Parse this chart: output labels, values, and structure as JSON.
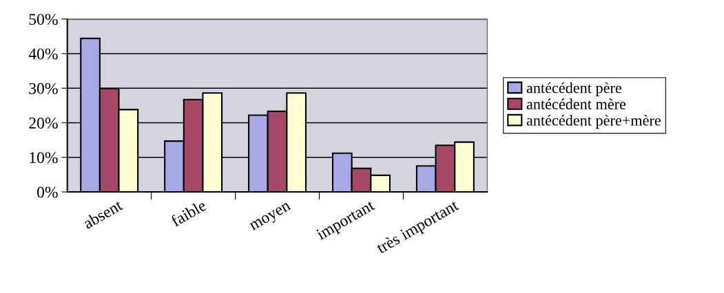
{
  "chart_data": {
    "type": "bar",
    "categories": [
      "absent",
      "faible",
      "moyen",
      "important",
      "très important"
    ],
    "series": [
      {
        "name": "antécédent père",
        "color": "#a8a8e6",
        "values": [
          44.4,
          14.7,
          22.2,
          11.2,
          7.5
        ]
      },
      {
        "name": "antécédent mère",
        "color": "#a64868",
        "values": [
          29.9,
          26.7,
          23.3,
          6.8,
          13.5
        ]
      },
      {
        "name": "antécédent père+mère",
        "color": "#ffffd2",
        "values": [
          23.8,
          28.6,
          28.6,
          4.8,
          14.4
        ]
      }
    ],
    "ylim": [
      0,
      50
    ],
    "yticks": [
      {
        "value": 0,
        "label": "0%"
      },
      {
        "value": 10,
        "label": "10%"
      },
      {
        "value": 20,
        "label": "20%"
      },
      {
        "value": 30,
        "label": "30%"
      },
      {
        "value": 40,
        "label": "40%"
      },
      {
        "value": 50,
        "label": "50%"
      }
    ],
    "grid": "y",
    "legend": "right"
  }
}
